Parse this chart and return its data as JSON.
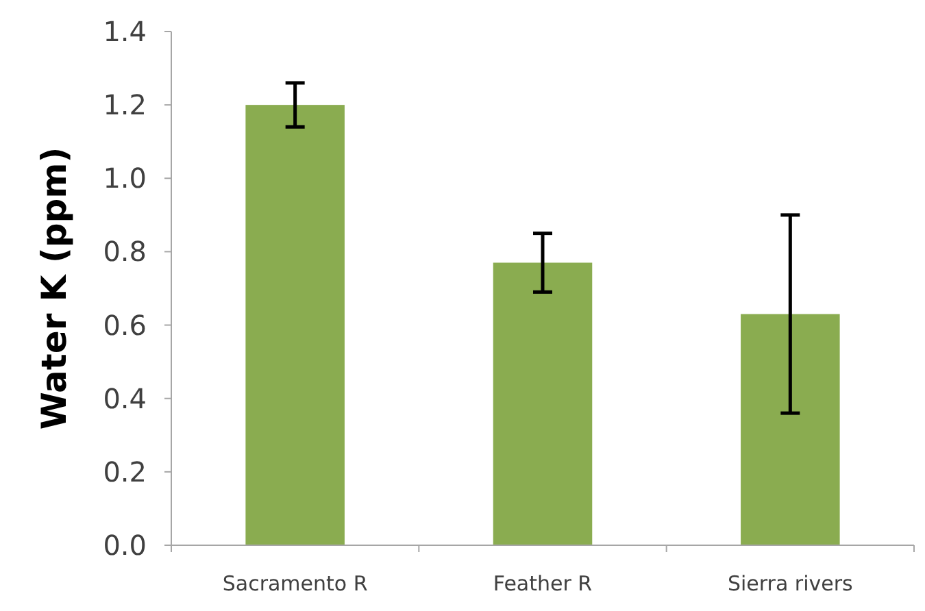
{
  "chart_data": {
    "type": "bar",
    "ylabel": "Water K (ppm)",
    "categories": [
      "Sacramento R",
      "Feather R",
      "Sierra rivers"
    ],
    "values": [
      1.2,
      0.77,
      0.63
    ],
    "errors": [
      0.06,
      0.08,
      0.27
    ],
    "color": "#8aac50",
    "ylim": [
      0,
      1.4
    ],
    "yticks": [
      {
        "value": 0,
        "label": "0.0"
      },
      {
        "value": 0.2,
        "label": "0.2"
      },
      {
        "value": 0.4,
        "label": "0.4"
      },
      {
        "value": 0.6,
        "label": "0.6"
      },
      {
        "value": 0.8,
        "label": "0.8"
      },
      {
        "value": 1,
        "label": "1.0"
      },
      {
        "value": 1.2,
        "label": "1.2"
      },
      {
        "value": 1.4,
        "label": "1.4"
      }
    ],
    "grid": false
  }
}
